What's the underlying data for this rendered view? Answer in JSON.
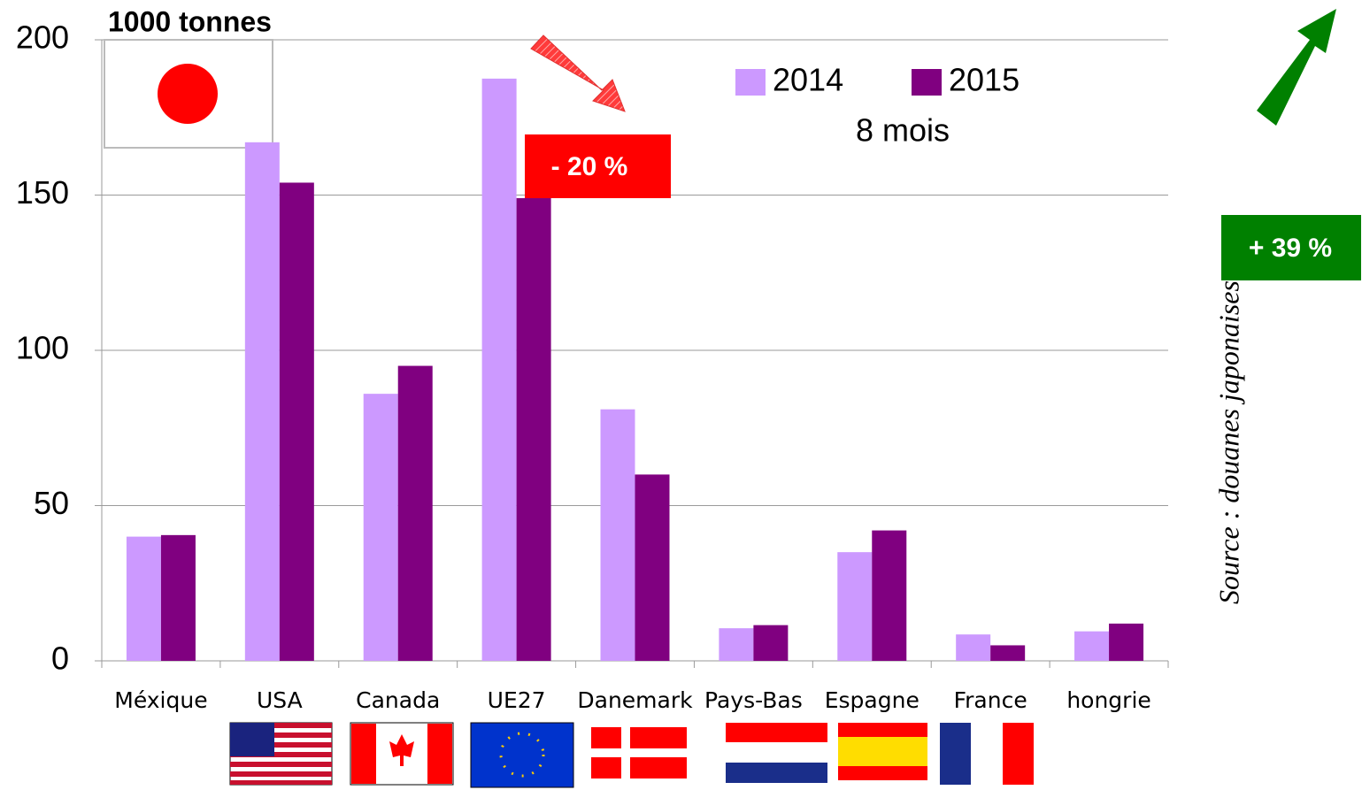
{
  "chart_data": {
    "type": "bar",
    "title": "1000 tonnes",
    "categories": [
      "Méxique",
      "USA",
      "Canada",
      "UE27",
      "Danemark",
      "Pays-Bas",
      "Espagne",
      "France",
      "hongrie"
    ],
    "series": [
      {
        "name": "2014",
        "color": "#cc99ff",
        "values": [
          40,
          167,
          86,
          187.5,
          81,
          10.5,
          35,
          8.5,
          9.5
        ]
      },
      {
        "name": "2015",
        "color": "#800080",
        "values": [
          40.5,
          154,
          95,
          149,
          60,
          11.5,
          42,
          5,
          12
        ]
      }
    ],
    "ylim": [
      0,
      200
    ],
    "yticks": [
      0,
      50,
      100,
      150,
      200
    ],
    "grid": true,
    "subtitle": "8 mois",
    "annotations": [
      "- 20 %",
      "+ 39 %"
    ],
    "source": "Source : douanes japonaises"
  }
}
